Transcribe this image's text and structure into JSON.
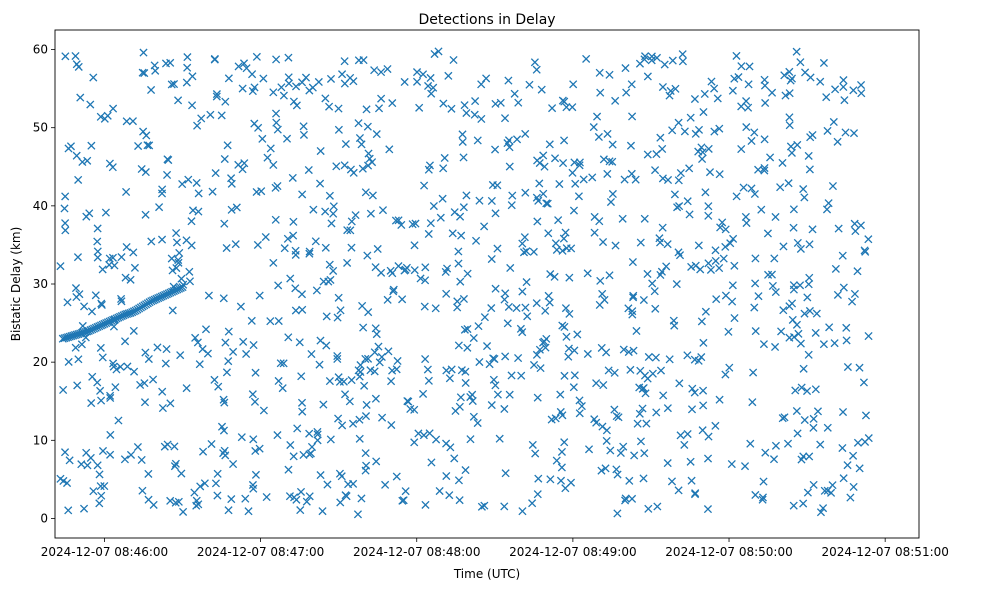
{
  "chart_data": {
    "type": "scatter",
    "title": "Detections in Delay",
    "xlabel": "Time (UTC)",
    "ylabel": "Bistatic Delay (km)",
    "marker": "x",
    "color": "#1f77b4",
    "xlim_seconds": [
      -19,
      313
    ],
    "ylim": [
      -2.5,
      62.5
    ],
    "x_ticks": [
      {
        "seconds": 0,
        "label": "2024-12-07 08:46:00"
      },
      {
        "seconds": 60,
        "label": "2024-12-07 08:47:00"
      },
      {
        "seconds": 120,
        "label": "2024-12-07 08:48:00"
      },
      {
        "seconds": 180,
        "label": "2024-12-07 08:49:00"
      },
      {
        "seconds": 240,
        "label": "2024-12-07 08:50:00"
      },
      {
        "seconds": 300,
        "label": "2024-12-07 08:51:00"
      }
    ],
    "y_ticks": [
      {
        "value": 0,
        "label": "0"
      },
      {
        "value": 10,
        "label": "10"
      },
      {
        "value": 20,
        "label": "20"
      },
      {
        "value": 30,
        "label": "30"
      },
      {
        "value": 40,
        "label": "40"
      },
      {
        "value": 50,
        "label": "50"
      },
      {
        "value": 60,
        "label": "60"
      }
    ],
    "noise_clutter": {
      "description_count": 1200,
      "x_range_seconds": [
        -17,
        294
      ],
      "y_range": [
        0.5,
        60
      ]
    },
    "target_track": {
      "points": [
        [
          -16,
          23.0
        ],
        [
          -14,
          23.2
        ],
        [
          -12,
          23.4
        ],
        [
          -10,
          23.6
        ],
        [
          -8,
          23.8
        ],
        [
          -6,
          24.0
        ],
        [
          -4,
          24.3
        ],
        [
          -2,
          24.6
        ],
        [
          0,
          24.9
        ],
        [
          2,
          25.2
        ],
        [
          4,
          25.5
        ],
        [
          6,
          25.8
        ],
        [
          8,
          26.1
        ],
        [
          10,
          26.3
        ],
        [
          12,
          26.6
        ],
        [
          14,
          27.0
        ],
        [
          16,
          27.4
        ],
        [
          18,
          27.8
        ],
        [
          20,
          28.1
        ],
        [
          22,
          28.4
        ],
        [
          24,
          28.7
        ],
        [
          26,
          29.0
        ],
        [
          28,
          29.3
        ],
        [
          30,
          29.6
        ]
      ]
    }
  }
}
